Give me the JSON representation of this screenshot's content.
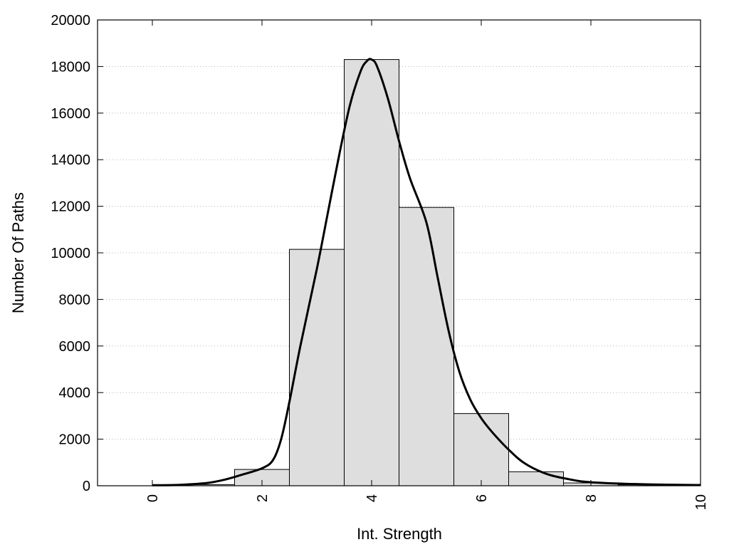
{
  "chart_data": {
    "type": "bar",
    "title": "",
    "xlabel": "Int. Strength",
    "ylabel": "Number Of Paths",
    "xlim": [
      -1,
      10
    ],
    "ylim": [
      0,
      20000
    ],
    "xticks": [
      "0",
      "2",
      "4",
      "6",
      "8",
      "10"
    ],
    "yticks": [
      "0",
      "2000",
      "4000",
      "6000",
      "8000",
      "10000",
      "12000",
      "14000",
      "16000",
      "18000",
      "20000"
    ],
    "grid": "horizontal-dotted",
    "legend": "none",
    "bar_color": "#dedede",
    "bars": [
      {
        "x": 1,
        "value": 50
      },
      {
        "x": 2,
        "value": 700
      },
      {
        "x": 3,
        "value": 10150
      },
      {
        "x": 4,
        "value": 18300
      },
      {
        "x": 5,
        "value": 11950
      },
      {
        "x": 6,
        "value": 3100
      },
      {
        "x": 7,
        "value": 600
      },
      {
        "x": 8,
        "value": 120
      },
      {
        "x": 9,
        "value": 40
      }
    ],
    "curve": {
      "type": "line",
      "color": "#000000",
      "x": [
        0,
        0.5,
        1.0,
        1.3,
        1.6,
        2.0,
        2.2,
        2.35,
        2.5,
        2.7,
        3.0,
        3.2,
        3.4,
        3.6,
        3.8,
        3.92,
        4.0,
        4.1,
        4.3,
        4.5,
        4.7,
        5.0,
        5.2,
        5.4,
        5.6,
        5.8,
        6.0,
        6.2,
        6.5,
        6.8,
        7.2,
        7.6,
        8.0,
        9.0,
        10.0
      ],
      "y": [
        20,
        40,
        120,
        250,
        450,
        750,
        1100,
        2000,
        3600,
        6000,
        9300,
        11700,
        14100,
        16300,
        17800,
        18250,
        18300,
        18000,
        16600,
        14800,
        13200,
        11300,
        9000,
        6700,
        4900,
        3700,
        2900,
        2300,
        1550,
        950,
        500,
        280,
        150,
        60,
        30
      ]
    }
  }
}
